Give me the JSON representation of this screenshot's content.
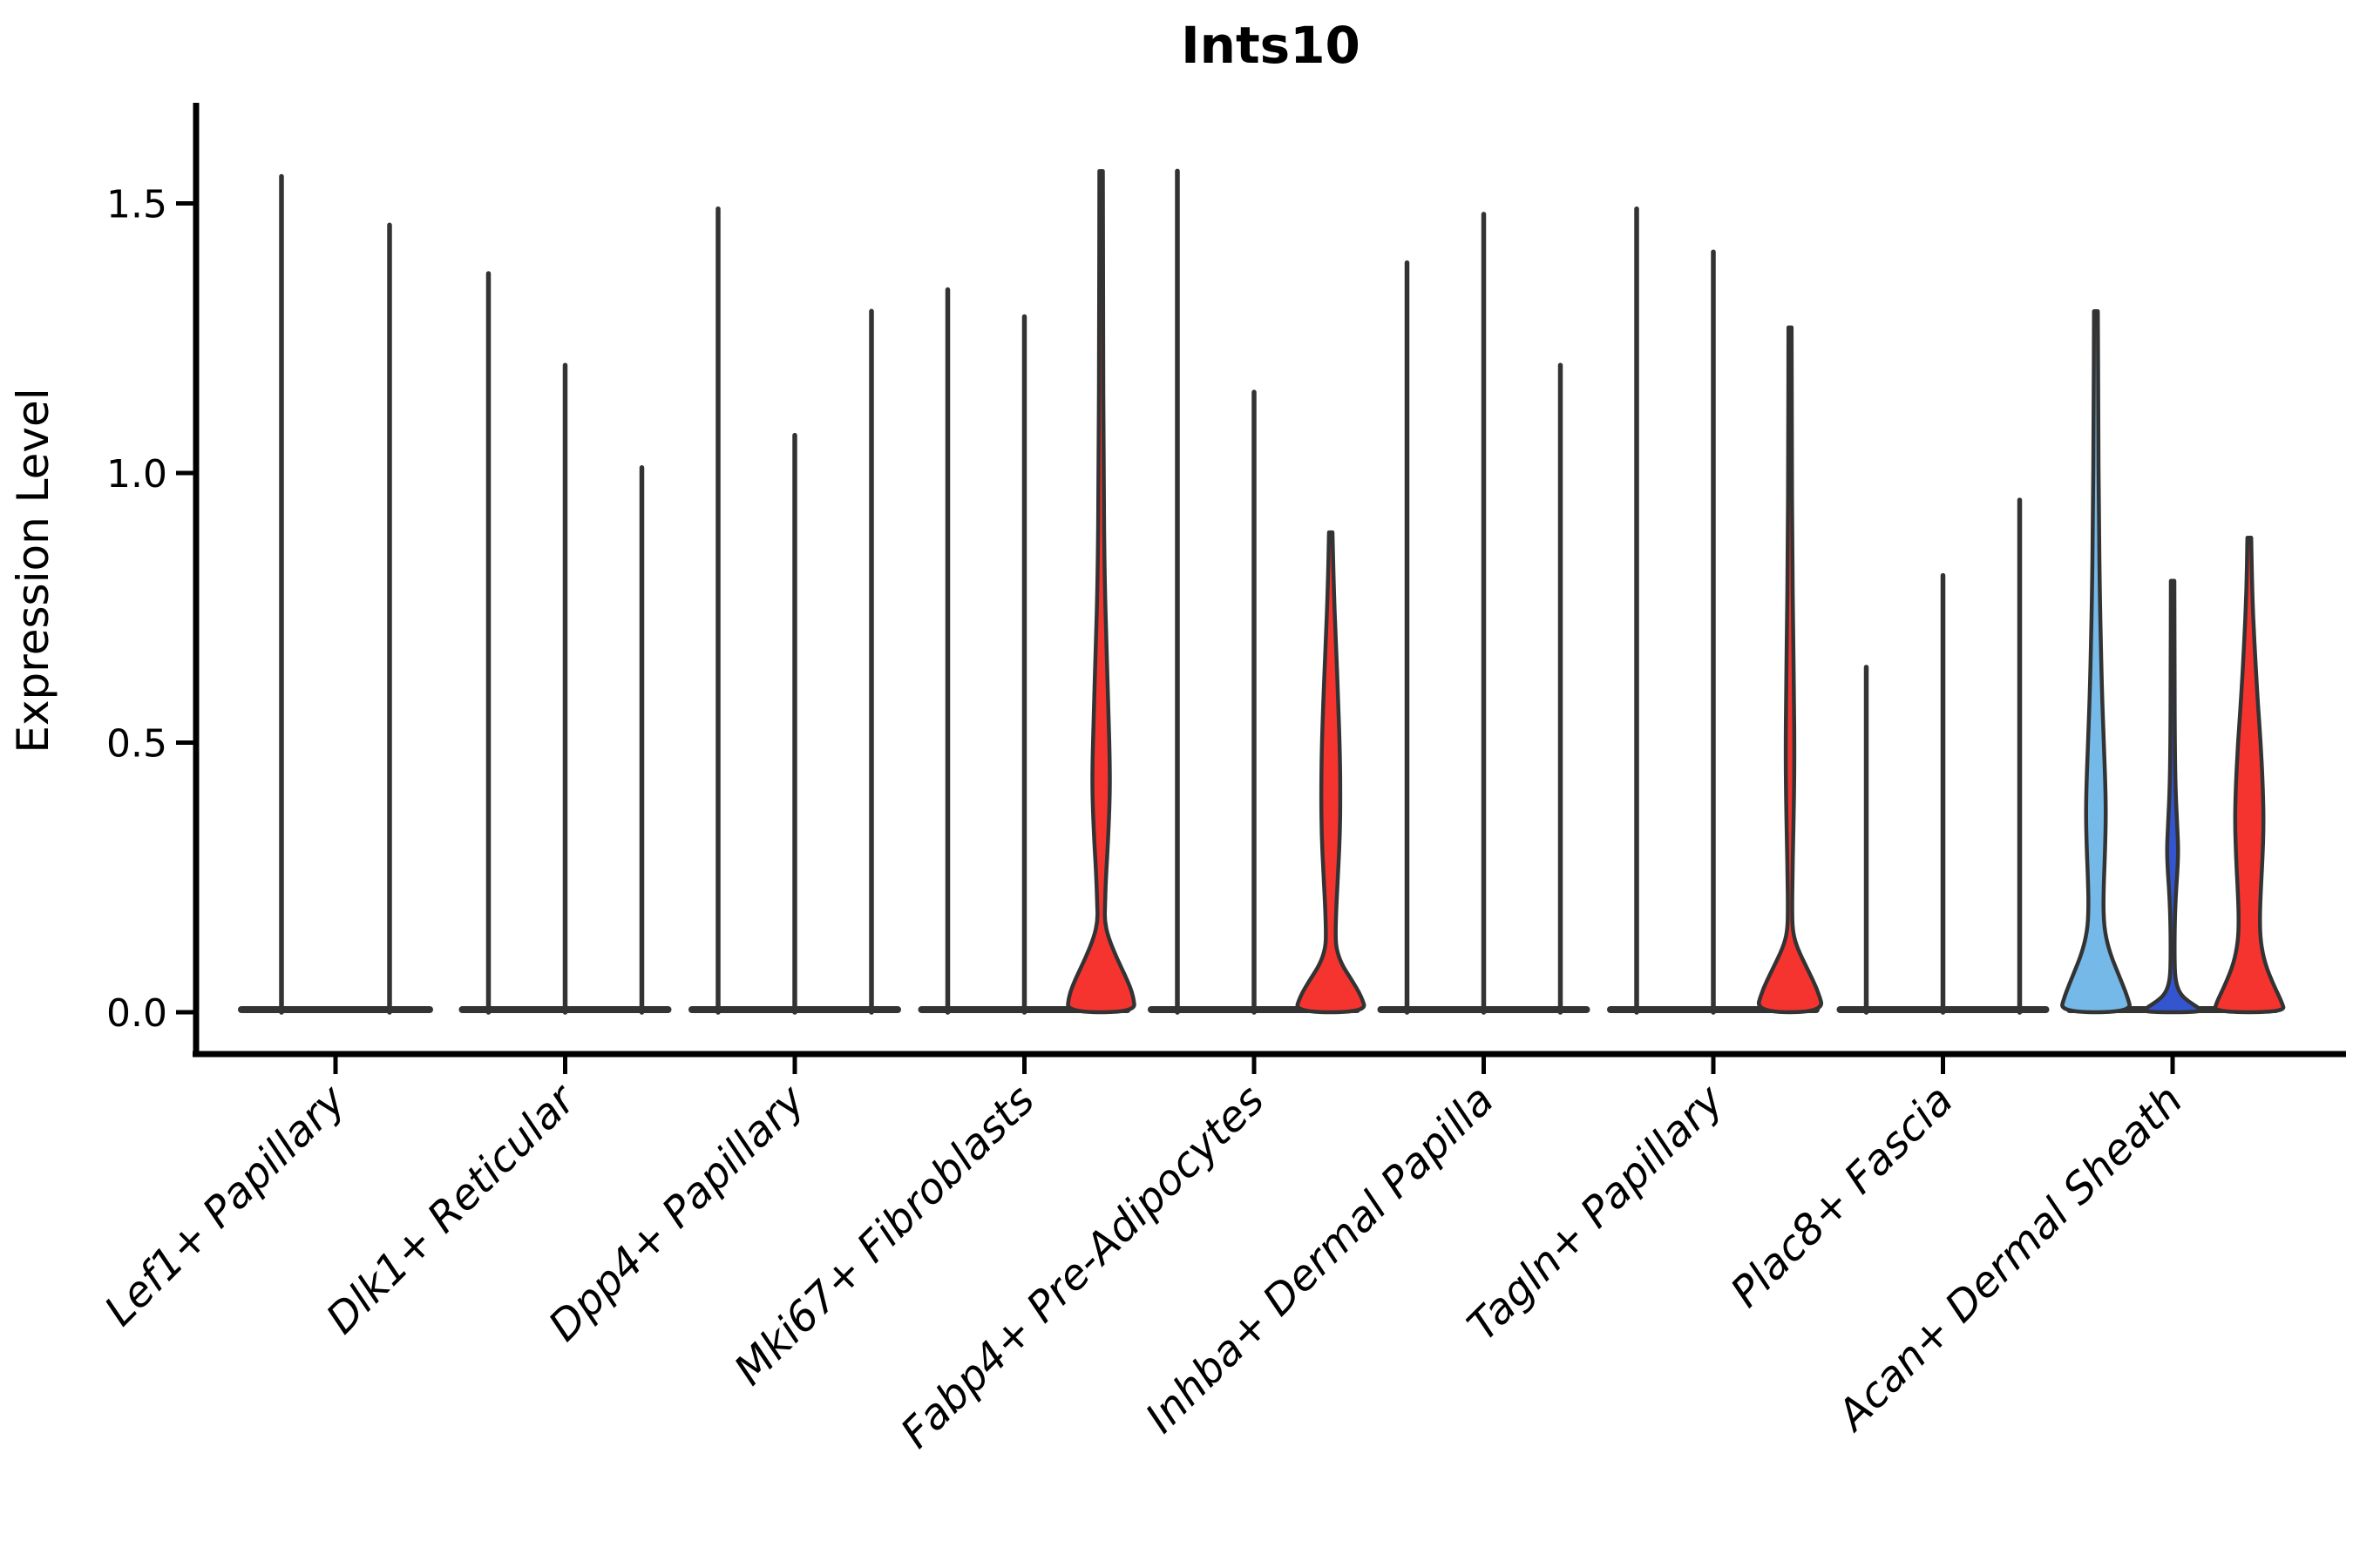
{
  "title": "Ints10",
  "y_axis": {
    "label": "Expression Level",
    "ticks": [
      {
        "label": "0.0",
        "value": 0.0
      },
      {
        "label": "0.5",
        "value": 0.5
      },
      {
        "label": "1.0",
        "value": 1.0
      },
      {
        "label": "1.5",
        "value": 1.5
      }
    ]
  },
  "chart_data": {
    "type": "violin",
    "title": "Ints10",
    "xlabel": "",
    "ylabel": "Expression Level",
    "ylim": [
      0,
      1.68
    ],
    "grid": false,
    "legend": "none",
    "categories": [
      "Lef1+ Papillary",
      "Dlk1+ Reticular",
      "Dpp4+ Papillary",
      "Mki67+ Fibroblasts",
      "Fabp4+ Pre-Adipocytes",
      "Inhba+ Dermal Papilla",
      "Tagln+ Papillary",
      "Plac8+ Fascia",
      "Acan+ Dermal Sheath"
    ],
    "colors": {
      "red": "#f6342f",
      "light_blue": "#74b9e8",
      "dark_blue": "#3355d0",
      "outline": "#333333"
    },
    "groups": [
      {
        "category": "Lef1+ Papillary",
        "violins": [
          {
            "max": 1.55,
            "style": "needle"
          },
          {
            "max": 1.46,
            "style": "needle"
          }
        ]
      },
      {
        "category": "Dlk1+ Reticular",
        "violins": [
          {
            "max": 1.37,
            "style": "needle"
          },
          {
            "max": 1.2,
            "style": "needle"
          },
          {
            "max": 1.01,
            "style": "needle"
          }
        ]
      },
      {
        "category": "Dpp4+ Papillary",
        "violins": [
          {
            "max": 1.49,
            "style": "needle"
          },
          {
            "max": 1.07,
            "style": "needle"
          },
          {
            "max": 1.3,
            "style": "needle"
          }
        ]
      },
      {
        "category": "Mki67+ Fibroblasts",
        "violins": [
          {
            "max": 1.34,
            "style": "needle"
          },
          {
            "max": 1.29,
            "style": "needle"
          },
          {
            "max": 1.56,
            "style": "violin",
            "fill": "red",
            "profile": [
              [
                1.56,
                2
              ],
              [
                1.3,
                2.2
              ],
              [
                1.0,
                2.8
              ],
              [
                0.8,
                4
              ],
              [
                0.66,
                6.5
              ],
              [
                0.55,
                8.5
              ],
              [
                0.46,
                10
              ],
              [
                0.4,
                10
              ],
              [
                0.32,
                8
              ],
              [
                0.25,
                5.5
              ],
              [
                0.2,
                4.5
              ],
              [
                0.17,
                4
              ],
              [
                0.14,
                8
              ],
              [
                0.1,
                18
              ],
              [
                0.06,
                30
              ],
              [
                0.03,
                37
              ],
              [
                0,
                39
              ]
            ]
          }
        ]
      },
      {
        "category": "Fabp4+ Pre-Adipocytes",
        "violins": [
          {
            "max": 1.56,
            "style": "needle"
          },
          {
            "max": 1.15,
            "style": "needle"
          },
          {
            "max": 0.89,
            "style": "violin",
            "fill": "red",
            "profile": [
              [
                0.89,
                2
              ],
              [
                0.78,
                3.5
              ],
              [
                0.68,
                6
              ],
              [
                0.58,
                8.5
              ],
              [
                0.48,
                10.5
              ],
              [
                0.4,
                11
              ],
              [
                0.33,
                10.5
              ],
              [
                0.26,
                8.5
              ],
              [
                0.2,
                6.5
              ],
              [
                0.15,
                5.5
              ],
              [
                0.12,
                6
              ],
              [
                0.09,
                12
              ],
              [
                0.06,
                24
              ],
              [
                0.03,
                35
              ],
              [
                0,
                41
              ]
            ]
          }
        ]
      },
      {
        "category": "Inhba+ Dermal Papilla",
        "violins": [
          {
            "max": 1.39,
            "style": "needle"
          },
          {
            "max": 1.48,
            "style": "needle"
          },
          {
            "max": 1.2,
            "style": "needle"
          }
        ]
      },
      {
        "category": "Tagln+ Papillary",
        "violins": [
          {
            "max": 1.49,
            "style": "needle"
          },
          {
            "max": 1.41,
            "style": "needle"
          },
          {
            "max": 1.27,
            "style": "violin",
            "fill": "red",
            "profile": [
              [
                1.27,
                1.8
              ],
              [
                1.05,
                2
              ],
              [
                0.85,
                2.6
              ],
              [
                0.7,
                3.6
              ],
              [
                0.58,
                4.6
              ],
              [
                0.48,
                5
              ],
              [
                0.4,
                4.6
              ],
              [
                0.32,
                3.6
              ],
              [
                0.25,
                2.8
              ],
              [
                0.19,
                2.4
              ],
              [
                0.15,
                3
              ],
              [
                0.12,
                8
              ],
              [
                0.08,
                20
              ],
              [
                0.04,
                32
              ],
              [
                0,
                39
              ]
            ]
          }
        ]
      },
      {
        "category": "Plac8+ Fascia",
        "violins": [
          {
            "max": 0.64,
            "style": "needle"
          },
          {
            "max": 0.81,
            "style": "needle"
          },
          {
            "max": 0.95,
            "style": "needle"
          }
        ]
      },
      {
        "category": "Acan+ Dermal Sheath",
        "violins": [
          {
            "max": 1.3,
            "style": "violin",
            "fill": "light_blue",
            "profile": [
              [
                1.3,
                2.2
              ],
              [
                1.1,
                2.6
              ],
              [
                0.92,
                3.4
              ],
              [
                0.76,
                4.6
              ],
              [
                0.62,
                6.5
              ],
              [
                0.52,
                8.5
              ],
              [
                0.44,
                10.5
              ],
              [
                0.37,
                11.5
              ],
              [
                0.3,
                10.5
              ],
              [
                0.24,
                9
              ],
              [
                0.19,
                8.5
              ],
              [
                0.15,
                10
              ],
              [
                0.11,
                16
              ],
              [
                0.07,
                26
              ],
              [
                0.03,
                36
              ],
              [
                0,
                41
              ]
            ]
          },
          {
            "max": 0.8,
            "style": "violin",
            "fill": "dark_blue",
            "profile": [
              [
                0.8,
                2
              ],
              [
                0.62,
                2.2
              ],
              [
                0.48,
                2.6
              ],
              [
                0.4,
                3.6
              ],
              [
                0.34,
                5.5
              ],
              [
                0.3,
                6.5
              ],
              [
                0.26,
                5.5
              ],
              [
                0.21,
                3.4
              ],
              [
                0.16,
                2.4
              ],
              [
                0.1,
                2.2
              ],
              [
                0.06,
                3
              ],
              [
                0.035,
                8
              ],
              [
                0.02,
                18
              ],
              [
                0.008,
                30
              ],
              [
                0,
                34
              ]
            ]
          },
          {
            "max": 0.88,
            "style": "violin",
            "fill": "red",
            "profile": [
              [
                0.88,
                2.2
              ],
              [
                0.78,
                3.2
              ],
              [
                0.68,
                6
              ],
              [
                0.58,
                9.5
              ],
              [
                0.5,
                13
              ],
              [
                0.42,
                15.5
              ],
              [
                0.35,
                16.5
              ],
              [
                0.28,
                15
              ],
              [
                0.22,
                13
              ],
              [
                0.17,
                12
              ],
              [
                0.13,
                13
              ],
              [
                0.09,
                18
              ],
              [
                0.05,
                28
              ],
              [
                0.02,
                37
              ],
              [
                0,
                41
              ]
            ]
          }
        ]
      }
    ]
  }
}
